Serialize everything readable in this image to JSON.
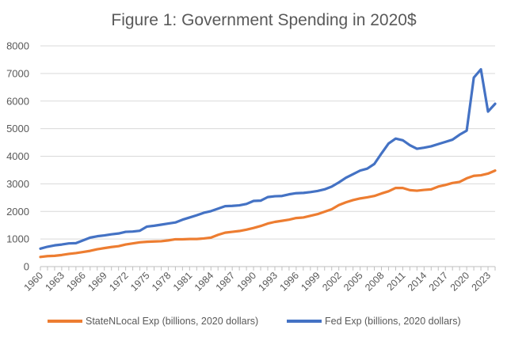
{
  "chart_data": {
    "type": "line",
    "title": "Figure 1: Government Spending in 2020$",
    "xlabel": "",
    "ylabel": "",
    "ylim": [
      0,
      8000
    ],
    "yticks": [
      0,
      1000,
      2000,
      3000,
      4000,
      5000,
      6000,
      7000,
      8000
    ],
    "y_tick_labels": [
      "0",
      "1000",
      "2000",
      "3000",
      "4000",
      "5000",
      "6000",
      "7000",
      "8000"
    ],
    "x_tick_labels": [
      "1960",
      "1963",
      "1966",
      "1969",
      "1972",
      "1975",
      "1978",
      "1981",
      "1984",
      "1987",
      "1990",
      "1993",
      "1996",
      "1999",
      "2002",
      "2005",
      "2008",
      "2011",
      "2014",
      "2017",
      "2020",
      "2023"
    ],
    "grid": "horizontal",
    "legend_position": "bottom",
    "x": [
      1960,
      1961,
      1962,
      1963,
      1964,
      1965,
      1966,
      1967,
      1968,
      1969,
      1970,
      1971,
      1972,
      1973,
      1974,
      1975,
      1976,
      1977,
      1978,
      1979,
      1980,
      1981,
      1982,
      1983,
      1984,
      1985,
      1986,
      1987,
      1988,
      1989,
      1990,
      1991,
      1992,
      1993,
      1994,
      1995,
      1996,
      1997,
      1998,
      1999,
      2000,
      2001,
      2002,
      2003,
      2004,
      2005,
      2006,
      2007,
      2008,
      2009,
      2010,
      2011,
      2012,
      2013,
      2014,
      2015,
      2016,
      2017,
      2018,
      2019,
      2020,
      2021,
      2022,
      2023,
      2024
    ],
    "series": [
      {
        "name": "StateNLocal Exp (billions, 2020 dollars)",
        "color": "#ED7D31",
        "values": [
          350,
          380,
          390,
          420,
          460,
          490,
          530,
          570,
          630,
          670,
          710,
          740,
          800,
          840,
          880,
          900,
          910,
          920,
          950,
          990,
          990,
          1000,
          1000,
          1020,
          1050,
          1150,
          1230,
          1260,
          1290,
          1340,
          1400,
          1470,
          1560,
          1620,
          1660,
          1700,
          1760,
          1780,
          1840,
          1900,
          1990,
          2080,
          2230,
          2330,
          2410,
          2470,
          2510,
          2560,
          2650,
          2730,
          2850,
          2850,
          2770,
          2750,
          2780,
          2800,
          2900,
          2960,
          3030,
          3070,
          3200,
          3290,
          3310,
          3370,
          3480
        ]
      },
      {
        "name": "Fed Exp (billions, 2020 dollars)",
        "color": "#4472C4",
        "values": [
          650,
          720,
          770,
          800,
          840,
          850,
          950,
          1050,
          1100,
          1130,
          1170,
          1200,
          1260,
          1270,
          1300,
          1450,
          1480,
          1520,
          1560,
          1600,
          1700,
          1780,
          1860,
          1950,
          2010,
          2100,
          2190,
          2200,
          2220,
          2270,
          2380,
          2390,
          2520,
          2550,
          2560,
          2620,
          2660,
          2670,
          2700,
          2740,
          2800,
          2900,
          3050,
          3220,
          3350,
          3480,
          3550,
          3720,
          4100,
          4460,
          4640,
          4580,
          4400,
          4270,
          4310,
          4360,
          4440,
          4520,
          4600,
          4780,
          4930,
          6850,
          7150,
          5620,
          5900
        ]
      }
    ]
  }
}
